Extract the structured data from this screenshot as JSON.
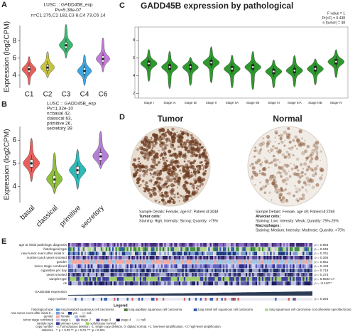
{
  "panels": {
    "A": {
      "label": "A",
      "type": "violin",
      "title": [
        "LUSC :: GADD45B_exp",
        "Pv=5.38e-07",
        "n=C1 275,C2 182,C3 8,C4 73,C6 14"
      ],
      "ylabel": "Expression (log2CPM)",
      "categories": [
        "C1",
        "C2",
        "C3",
        "C4",
        "C6"
      ],
      "colors": [
        "#e8605c",
        "#c7c43a",
        "#3db871",
        "#3ea7e0",
        "#c27bd6"
      ],
      "medians": [
        4.7,
        4.9,
        7.5,
        4.5,
        5.9
      ],
      "ylim": [
        2.5,
        9.8
      ],
      "yticks": [
        4,
        6,
        8
      ]
    },
    "B": {
      "label": "B",
      "type": "violin",
      "title": [
        "LUSC :: GADD45B_exp",
        "Pv=1.32e-10",
        "n=basal 42,",
        "classical 63,",
        "primitive 26,",
        "secretory 39"
      ],
      "ylabel": "Expression (log2CPM)",
      "categories": [
        "basal",
        "classical",
        "primitive",
        "secretory"
      ],
      "colors": [
        "#e8605c",
        "#8fc03a",
        "#2fb8b8",
        "#b57fd6"
      ],
      "medians": [
        5.0,
        4.3,
        4.7,
        5.3
      ],
      "ylim": [
        3.3,
        6.6
      ],
      "yticks": [
        4,
        5,
        6
      ]
    },
    "C": {
      "label": "C",
      "type": "violin",
      "title": [
        "GADD45B expression by pathological"
      ],
      "stats": [
        "F value = 1",
        "Pr(>F) = 0.438",
        "n (tumor) = 48"
      ],
      "categories": [
        "Stage I",
        "Stage IA",
        "Stage IB",
        "Stage II",
        "Stage IIA",
        "Stage IIB",
        "Stage III",
        "Stage IIIA",
        "Stage IIIB",
        "Stage IV"
      ],
      "colors": [
        "#2e9a2e",
        "#2e9a2e",
        "#2e9a2e",
        "#2e9a2e",
        "#2e9a2e",
        "#2e9a2e",
        "#2e9a2e",
        "#2e9a2e",
        "#2e9a2e",
        "#2e9a2e"
      ],
      "medians": [
        5.4,
        5.0,
        5.0,
        5.5,
        4.8,
        5.0,
        4.5,
        4.6,
        4.8,
        5.6
      ],
      "ylim": [
        1.5,
        9.5
      ],
      "yticks": [
        2,
        4,
        6,
        8
      ]
    },
    "D": {
      "label": "D",
      "tumor": {
        "title": "Tumor",
        "lines": [
          "Sample Details: Female, age 67; Patient id:3048",
          "Tumor cells:",
          "Staining: High; Intensity: Strong; Quantity: >75%"
        ]
      },
      "normal": {
        "title": "Normal",
        "lines": [
          "Sample Details: Female, age 49; Patient id:2268",
          "Alveolar cells:",
          "Staining: Low; Intensity: Weak; Quantity: 75%-25%",
          "Macrophages:",
          "Staining: Medium; Intensity: Moderate; Quantity: >75%"
        ]
      }
    },
    "E": {
      "label": "E",
      "rows": [
        {
          "label": "age at initial pathologic diagnosis",
          "p": "p = 0.963"
        },
        {
          "label": "histological type",
          "p": "p = 0.045"
        },
        {
          "label": "new tumor event after initial tr...",
          "p": "p = 0.761"
        },
        {
          "label": "number pack years smoked",
          "p": "p = 0.265"
        },
        {
          "label": "gender",
          "p": "p = 0.551"
        },
        {
          "label": "tumor stage combined",
          "p": "p = 0.434"
        },
        {
          "label": "cigarettes per day",
          "p": "p = 0.716"
        },
        {
          "label": "years smoked",
          "p": "p = 0.373"
        },
        {
          "label": "sample type",
          "p": "p = 6.550e-17"
        },
        {
          "label": "os",
          "p": "ρ = -0.110**"
        }
      ],
      "expression": "GADD45B expression",
      "copy_number": {
        "label": "copy number",
        "p": "p = 0.264"
      },
      "legend_title": "Legend",
      "legend": [
        {
          "name": "histological type",
          "items": [
            "lung basaloid squamous cell carcinoma",
            "lung papillary squamous cell carcinoma",
            "lung small cell squamous cell carcinoma",
            "lung squamous cell carcinoma- not otherwise specified (nos)",
            "null"
          ]
        },
        {
          "name": "new tumor event after initial tr...",
          "items": [
            "no",
            "yes",
            "null"
          ]
        },
        {
          "name": "gender",
          "items": [
            "female",
            "male"
          ]
        },
        {
          "name": "tumor stage combined",
          "items": [
            "stage 1",
            "stage 2",
            "stage 3",
            "stage 4",
            "null"
          ]
        },
        {
          "name": "sample type",
          "items": [
            "primary tumor",
            "solid tissue normal"
          ]
        },
        {
          "name": "copy number",
          "items": [
            "-2: homozygous deletion, -1: single copy deletion, 0: diploid normal, +1: low-level amplification, +2: high-level amplification"
          ]
        },
        {
          "name": "statistics",
          "items": [
            "*: p < 0.05   **: p < 0.01   ***: p < 0.001"
          ]
        }
      ]
    }
  }
}
